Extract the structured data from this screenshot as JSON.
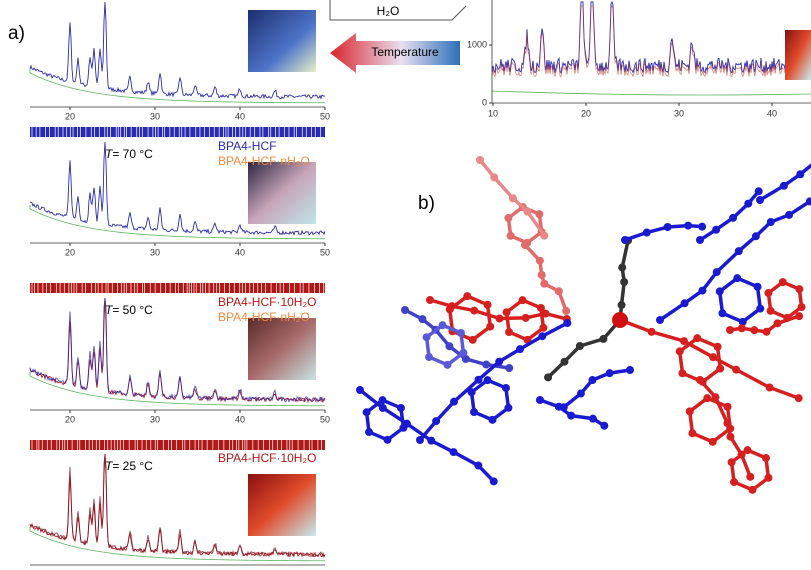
{
  "panel_a": {
    "label": "a)",
    "plots": [
      {
        "xticks": [
          20,
          30,
          40,
          50
        ]
      },
      {
        "condition": {
          "symbol": "T",
          "text": "= 70 °C"
        },
        "legend": [
          {
            "name": "BPA4-HCF",
            "color": "#2b2bb0"
          },
          {
            "name": "BPA4-HCF·nH₂O",
            "color": "#f08a3c"
          }
        ],
        "xticks": [
          20,
          30,
          40,
          50
        ]
      },
      {
        "condition": {
          "symbol": "T",
          "text": "= 50 °C"
        },
        "legend": [
          {
            "name": "BPA4-HCF·10H₂O",
            "color": "#b01818"
          },
          {
            "name": "BPA4-HCF·nH₂O",
            "color": "#f08a3c"
          }
        ],
        "xticks": [
          20,
          30,
          40,
          50
        ]
      },
      {
        "condition": {
          "symbol": "T",
          "text": "= 25 °C"
        },
        "legend": [
          {
            "name": "BPA4-HCF·10H₂O",
            "color": "#b01818"
          }
        ]
      }
    ],
    "arrow": {
      "top_label": "H₂O",
      "label": "Temperature"
    },
    "inset_plot": {
      "xticks": [
        10,
        20,
        30,
        40
      ],
      "yticks": [
        0,
        1000
      ]
    }
  },
  "panel_b": {
    "label": "b)"
  }
}
